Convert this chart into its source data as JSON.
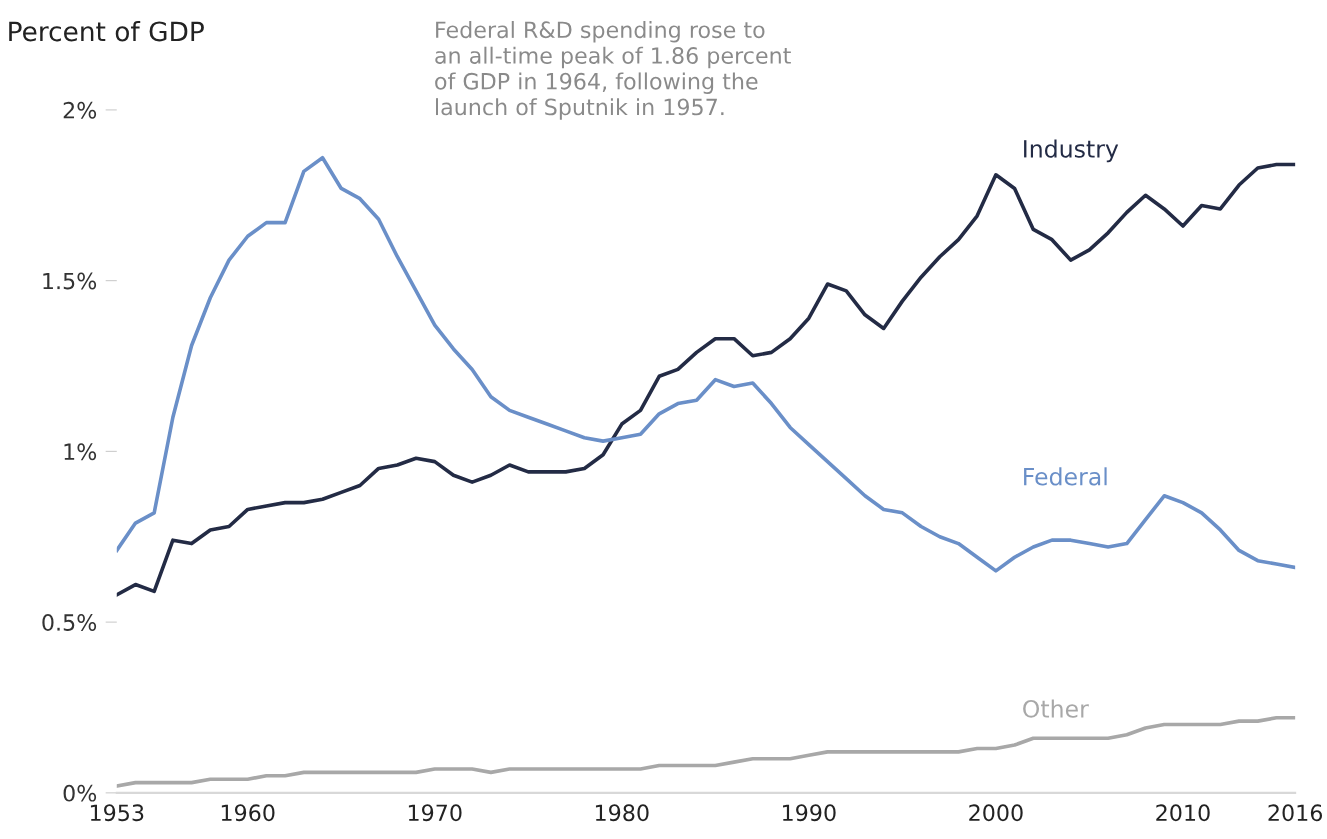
{
  "chart_data": {
    "type": "line",
    "ylabel": "Percent of GDP",
    "annotations": [
      "Federal R&D spending rose to\nan all-time peak of 1.86 percent\nof GDP in 1964, following the\nlaunch of Sputnik in 1957."
    ],
    "x": [
      1953,
      1954,
      1955,
      1956,
      1957,
      1958,
      1959,
      1960,
      1961,
      1962,
      1963,
      1964,
      1965,
      1966,
      1967,
      1968,
      1969,
      1970,
      1971,
      1972,
      1973,
      1974,
      1975,
      1976,
      1977,
      1978,
      1979,
      1980,
      1981,
      1982,
      1983,
      1984,
      1985,
      1986,
      1987,
      1988,
      1989,
      1990,
      1991,
      1992,
      1993,
      1994,
      1995,
      1996,
      1997,
      1998,
      1999,
      2000,
      2001,
      2002,
      2003,
      2004,
      2005,
      2006,
      2007,
      2008,
      2009,
      2010,
      2011,
      2012,
      2013,
      2014,
      2015,
      2016
    ],
    "series": [
      {
        "name": "Industry",
        "color": "#232b45",
        "values": [
          0.58,
          0.61,
          0.59,
          0.74,
          0.73,
          0.77,
          0.78,
          0.83,
          0.84,
          0.85,
          0.85,
          0.86,
          0.88,
          0.9,
          0.95,
          0.96,
          0.98,
          0.97,
          0.93,
          0.91,
          0.93,
          0.96,
          0.94,
          0.94,
          0.94,
          0.95,
          0.99,
          1.08,
          1.12,
          1.22,
          1.24,
          1.29,
          1.33,
          1.33,
          1.28,
          1.29,
          1.33,
          1.39,
          1.49,
          1.47,
          1.4,
          1.36,
          1.44,
          1.51,
          1.57,
          1.62,
          1.69,
          1.81,
          1.77,
          1.65,
          1.62,
          1.56,
          1.59,
          1.64,
          1.7,
          1.75,
          1.71,
          1.66,
          1.72,
          1.71,
          1.78,
          1.83,
          1.84,
          1.84
        ]
      },
      {
        "name": "Federal",
        "color": "#6a8fc8",
        "values": [
          0.71,
          0.79,
          0.82,
          1.1,
          1.31,
          1.45,
          1.56,
          1.63,
          1.67,
          1.67,
          1.82,
          1.86,
          1.77,
          1.74,
          1.68,
          1.57,
          1.47,
          1.37,
          1.3,
          1.24,
          1.16,
          1.12,
          1.1,
          1.08,
          1.06,
          1.04,
          1.03,
          1.04,
          1.05,
          1.11,
          1.14,
          1.15,
          1.21,
          1.19,
          1.2,
          1.14,
          1.07,
          1.02,
          0.97,
          0.92,
          0.87,
          0.83,
          0.82,
          0.78,
          0.75,
          0.73,
          0.69,
          0.65,
          0.69,
          0.72,
          0.74,
          0.74,
          0.73,
          0.72,
          0.73,
          0.8,
          0.87,
          0.85,
          0.82,
          0.77,
          0.71,
          0.68,
          0.67,
          0.66
        ]
      },
      {
        "name": "Other",
        "color": "#a8a8a8",
        "values": [
          0.02,
          0.03,
          0.03,
          0.03,
          0.03,
          0.04,
          0.04,
          0.04,
          0.05,
          0.05,
          0.06,
          0.06,
          0.06,
          0.06,
          0.06,
          0.06,
          0.06,
          0.07,
          0.07,
          0.07,
          0.06,
          0.07,
          0.07,
          0.07,
          0.07,
          0.07,
          0.07,
          0.07,
          0.07,
          0.08,
          0.08,
          0.08,
          0.08,
          0.09,
          0.1,
          0.1,
          0.1,
          0.11,
          0.12,
          0.12,
          0.12,
          0.12,
          0.12,
          0.12,
          0.12,
          0.12,
          0.13,
          0.13,
          0.14,
          0.16,
          0.16,
          0.16,
          0.16,
          0.16,
          0.17,
          0.19,
          0.2,
          0.2,
          0.2,
          0.2,
          0.21,
          0.21,
          0.22,
          0.22
        ]
      }
    ],
    "xlim": [
      1953,
      2016
    ],
    "xticks": [
      1953,
      1960,
      1970,
      1980,
      1990,
      2000,
      2010,
      2016
    ],
    "ylim": [
      0,
      2
    ],
    "yticks": [
      {
        "value": 0,
        "label": "0%"
      },
      {
        "value": 0.5,
        "label": "0.5%"
      },
      {
        "value": 1,
        "label": "1%"
      },
      {
        "value": 1.5,
        "label": "1.5%"
      },
      {
        "value": 2,
        "label": "2%"
      }
    ],
    "grid": false,
    "legend": false,
    "marker": "none",
    "line_style": "solid"
  }
}
